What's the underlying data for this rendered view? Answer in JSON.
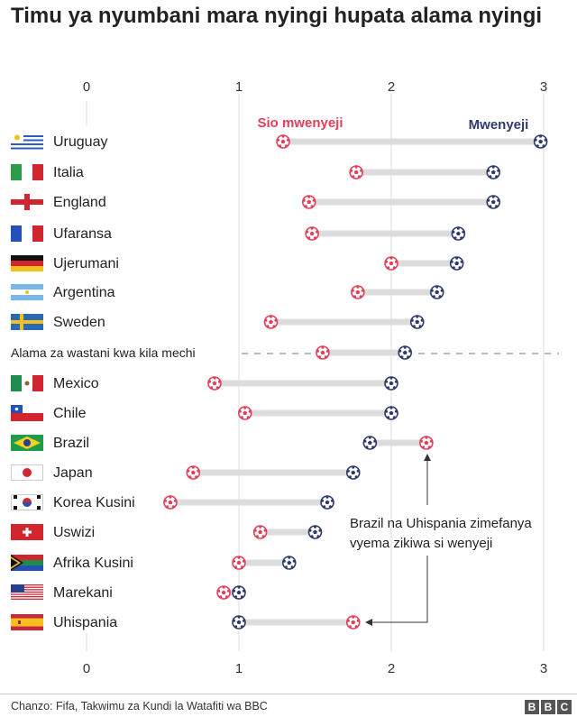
{
  "title": "Timu ya nyumbani mara nyingi hupata alama nyingi",
  "source": "Chanzo: Fifa, Takwimu za Kundi la Watafiti wa BBC",
  "logo": [
    "B",
    "B",
    "C"
  ],
  "colors": {
    "home": "#2f3a6e",
    "away": "#e0405a",
    "bar": "#dcdcdc",
    "grid": "#dddddd"
  },
  "chart_data": {
    "type": "dumbbell",
    "title": "Timu ya nyumbani mara nyingi hupata alama nyingi",
    "x_ticks": [
      "0",
      "1",
      "2",
      "3"
    ],
    "xlim": [
      0,
      3
    ],
    "legend": {
      "away": "Sio mwenyeji",
      "home": "Mwenyeji"
    },
    "average_label": "Alama za wastani kwa kila mechi",
    "annotation": [
      "Brazil na Uhispania zimefanya",
      "vyema zikiwa si wenyeji"
    ],
    "rows": [
      {
        "team": "Uruguay",
        "flag": "uruguay",
        "away": 1.29,
        "home": 2.98
      },
      {
        "team": "Italia",
        "flag": "italy",
        "away": 1.77,
        "home": 2.67
      },
      {
        "team": "England",
        "flag": "england",
        "away": 1.46,
        "home": 2.67
      },
      {
        "team": "Ufaransa",
        "flag": "france",
        "away": 1.48,
        "home": 2.44
      },
      {
        "team": "Ujerumani",
        "flag": "germany",
        "away": 2.0,
        "home": 2.43
      },
      {
        "team": "Argentina",
        "flag": "argentina",
        "away": 1.78,
        "home": 2.3
      },
      {
        "team": "Sweden",
        "flag": "sweden",
        "away": 1.21,
        "home": 2.17
      },
      {
        "team": "Alama za wastani kwa kila mechi",
        "flag": "average",
        "away": 1.55,
        "home": 2.09
      },
      {
        "team": "Mexico",
        "flag": "mexico",
        "away": 0.84,
        "home": 2.0
      },
      {
        "team": "Chile",
        "flag": "chile",
        "away": 1.04,
        "home": 2.0
      },
      {
        "team": "Brazil",
        "flag": "brazil",
        "away": 2.23,
        "home": 1.86
      },
      {
        "team": "Japan",
        "flag": "japan",
        "away": 0.7,
        "home": 1.75
      },
      {
        "team": "Korea Kusini",
        "flag": "south-korea",
        "away": 0.55,
        "home": 1.58
      },
      {
        "team": "Uswizi",
        "flag": "switzerland",
        "away": 1.14,
        "home": 1.5
      },
      {
        "team": "Afrika Kusini",
        "flag": "south-africa",
        "away": 1.0,
        "home": 1.33
      },
      {
        "team": "Marekani",
        "flag": "usa",
        "away": 0.9,
        "home": 1.0
      },
      {
        "team": "Uhispania",
        "flag": "spain",
        "away": 1.75,
        "home": 1.0
      }
    ]
  }
}
